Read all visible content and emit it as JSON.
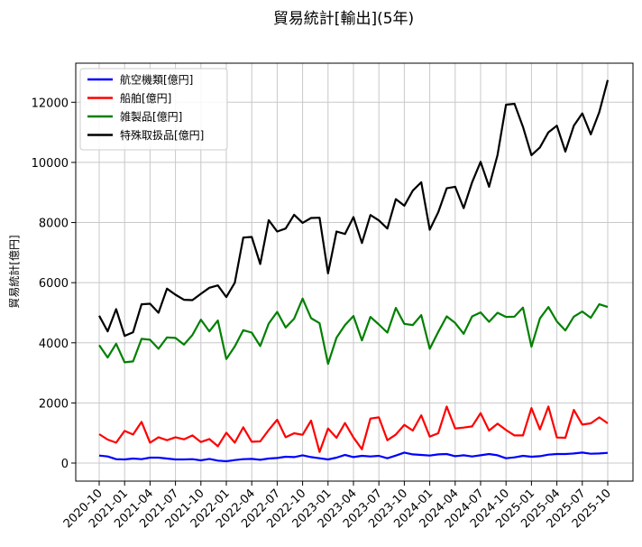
{
  "chart_data": {
    "type": "line",
    "title": "貿易統計[輸出](5年)",
    "xlabel": "",
    "ylabel": "貿易統計[億円]",
    "ylim": [
      -600,
      13300
    ],
    "yticks": [
      0,
      2000,
      4000,
      6000,
      8000,
      10000,
      12000
    ],
    "grid": true,
    "legend_position": "top-left",
    "xtick_labels": [
      "2020-10",
      "2021-01",
      "2021-04",
      "2021-07",
      "2021-10",
      "2022-01",
      "2022-04",
      "2022-07",
      "2022-10",
      "2023-01",
      "2023-04",
      "2023-07",
      "2023-10",
      "2024-01",
      "2024-04",
      "2024-07",
      "2024-10",
      "2025-01",
      "2025-04",
      "2025-07",
      "2025-10"
    ],
    "x": [
      "2020-10",
      "2020-11",
      "2020-12",
      "2021-01",
      "2021-02",
      "2021-03",
      "2021-04",
      "2021-05",
      "2021-06",
      "2021-07",
      "2021-08",
      "2021-09",
      "2021-10",
      "2021-11",
      "2021-12",
      "2022-01",
      "2022-02",
      "2022-03",
      "2022-04",
      "2022-05",
      "2022-06",
      "2022-07",
      "2022-08",
      "2022-09",
      "2022-10",
      "2022-11",
      "2022-12",
      "2023-01",
      "2023-02",
      "2023-03",
      "2023-04",
      "2023-05",
      "2023-06",
      "2023-07",
      "2023-08",
      "2023-09",
      "2023-10",
      "2023-11",
      "2023-12",
      "2024-01",
      "2024-02",
      "2024-03",
      "2024-04",
      "2024-05",
      "2024-06",
      "2024-07",
      "2024-08",
      "2024-09",
      "2024-10",
      "2024-11",
      "2024-12",
      "2025-01",
      "2025-02",
      "2025-03",
      "2025-04",
      "2025-05",
      "2025-06",
      "2025-07",
      "2025-08",
      "2025-09",
      "2025-10"
    ],
    "series": [
      {
        "name": "航空機類[億円]",
        "color": "#0000ff",
        "values": [
          250,
          220,
          130,
          120,
          150,
          130,
          180,
          180,
          150,
          120,
          120,
          130,
          90,
          140,
          80,
          60,
          100,
          130,
          140,
          110,
          150,
          170,
          210,
          200,
          260,
          200,
          160,
          120,
          180,
          270,
          200,
          240,
          220,
          240,
          160,
          250,
          350,
          290,
          270,
          250,
          290,
          300,
          230,
          260,
          220,
          260,
          300,
          260,
          160,
          190,
          240,
          210,
          230,
          280,
          300,
          300,
          320,
          350,
          310,
          320,
          340
        ]
      },
      {
        "name": "船舶[億円]",
        "color": "#ff0000",
        "values": [
          960,
          780,
          680,
          1070,
          950,
          1370,
          680,
          860,
          760,
          860,
          790,
          920,
          700,
          800,
          560,
          1010,
          680,
          1190,
          710,
          720,
          1100,
          1440,
          860,
          990,
          940,
          1410,
          370,
          1150,
          840,
          1330,
          850,
          460,
          1480,
          1520,
          760,
          950,
          1270,
          1080,
          1590,
          880,
          990,
          1880,
          1150,
          1180,
          1220,
          1660,
          1080,
          1310,
          1100,
          920,
          920,
          1830,
          1120,
          1880,
          850,
          840,
          1770,
          1280,
          1320,
          1520,
          1320
        ]
      },
      {
        "name": "雑製品[億円]",
        "color": "#008000",
        "values": [
          3920,
          3510,
          3970,
          3350,
          3380,
          4130,
          4100,
          3800,
          4180,
          4160,
          3940,
          4260,
          4770,
          4380,
          4740,
          3460,
          3880,
          4420,
          4340,
          3890,
          4640,
          5030,
          4510,
          4800,
          5470,
          4820,
          4650,
          3300,
          4170,
          4590,
          4890,
          4080,
          4860,
          4610,
          4340,
          5160,
          4630,
          4590,
          4920,
          3800,
          4360,
          4880,
          4660,
          4300,
          4880,
          5010,
          4700,
          5000,
          4860,
          4870,
          5170,
          3870,
          4810,
          5190,
          4710,
          4410,
          4870,
          5040,
          4830,
          5280,
          5190
        ]
      },
      {
        "name": "特殊取扱品[億円]",
        "color": "#000000",
        "values": [
          4900,
          4380,
          5120,
          4230,
          4350,
          5280,
          5300,
          5000,
          5800,
          5600,
          5430,
          5420,
          5630,
          5830,
          5910,
          5520,
          6000,
          7500,
          7520,
          6620,
          8080,
          7700,
          7800,
          8260,
          7990,
          8150,
          8160,
          6310,
          7700,
          7620,
          8180,
          7320,
          8250,
          8070,
          7800,
          8780,
          8560,
          9060,
          9340,
          7760,
          8340,
          9140,
          9190,
          8480,
          9340,
          10020,
          9190,
          10250,
          11920,
          11950,
          11180,
          10240,
          10500,
          11000,
          11220,
          10360,
          11220,
          11630,
          10930,
          11670,
          12740
        ]
      }
    ]
  }
}
